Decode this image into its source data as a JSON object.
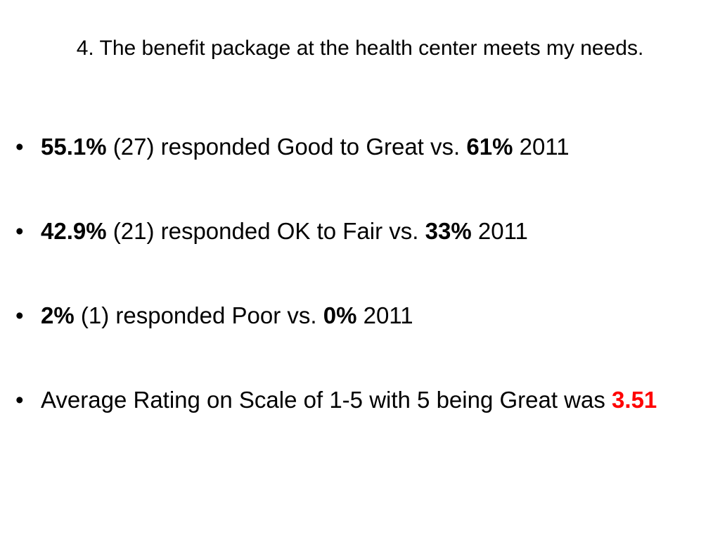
{
  "title": "4. The benefit package at the health center meets my needs.",
  "bullets": [
    [
      "55.1%",
      "(27) responded Good to Great vs.",
      "61%",
      "2011"
    ],
    [
      "42.9%",
      "(21) responded OK to Fair vs.",
      "33%",
      "2011"
    ],
    [
      "2%",
      "(1) responded Poor vs.",
      "0%",
      "2011"
    ],
    [
      "Average Rating on Scale of 1-5 with 5 being Great was",
      "3.51"
    ]
  ]
}
